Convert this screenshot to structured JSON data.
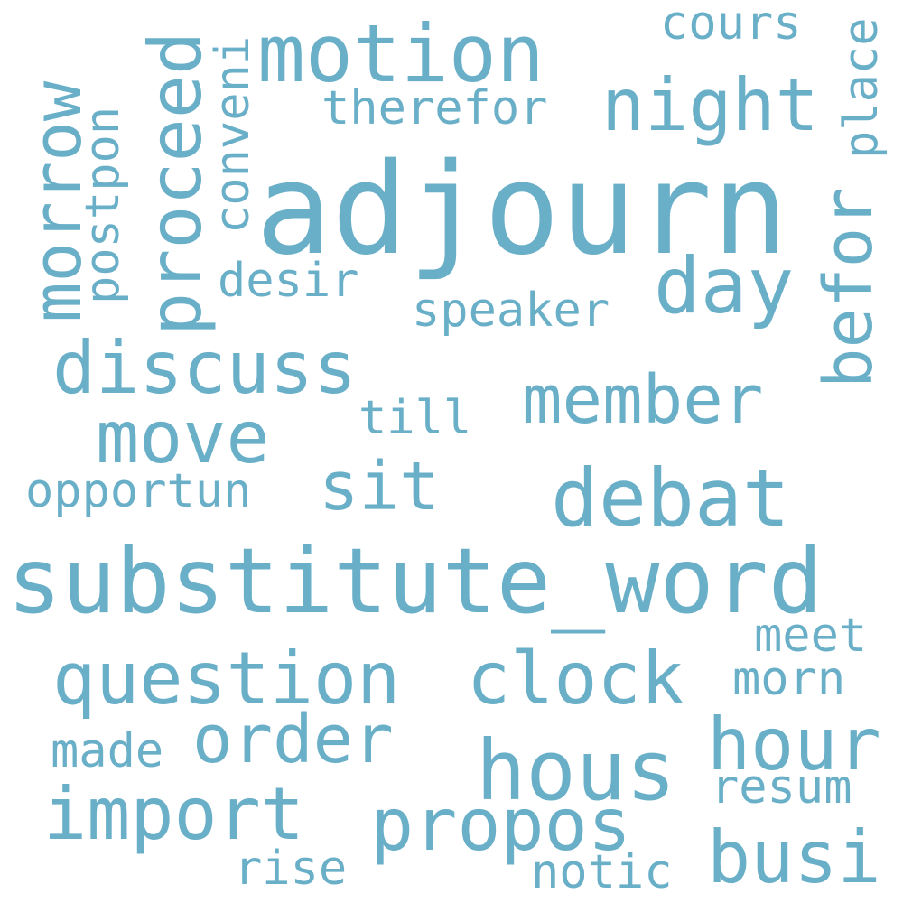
{
  "word_color": "#6aafc8",
  "background": "#ffffff",
  "words": {
    "adjourn": "adjourn",
    "substitute_word": "substitute_word",
    "motion": "motion",
    "night": "night",
    "debat": "debat",
    "hous": "hous",
    "discuss": "discuss",
    "move": "move",
    "member": "member",
    "question": "question",
    "clock": "clock",
    "import": "import",
    "propos": "propos",
    "order": "order",
    "hour": "hour",
    "busi": "busi",
    "day": "day",
    "sit": "sit",
    "proceed": "proceed",
    "morrow": "morrow",
    "befor": "befor",
    "postpon": "postpon",
    "conveni": "conveni",
    "place": "place",
    "therefor": "therefor",
    "cours": "cours",
    "desir": "desir",
    "speaker": "speaker",
    "till": "till",
    "opportun": "opportun",
    "meet": "meet",
    "morn": "morn",
    "made": "made",
    "resum": "resum",
    "rise": "rise",
    "notic": "notic"
  }
}
